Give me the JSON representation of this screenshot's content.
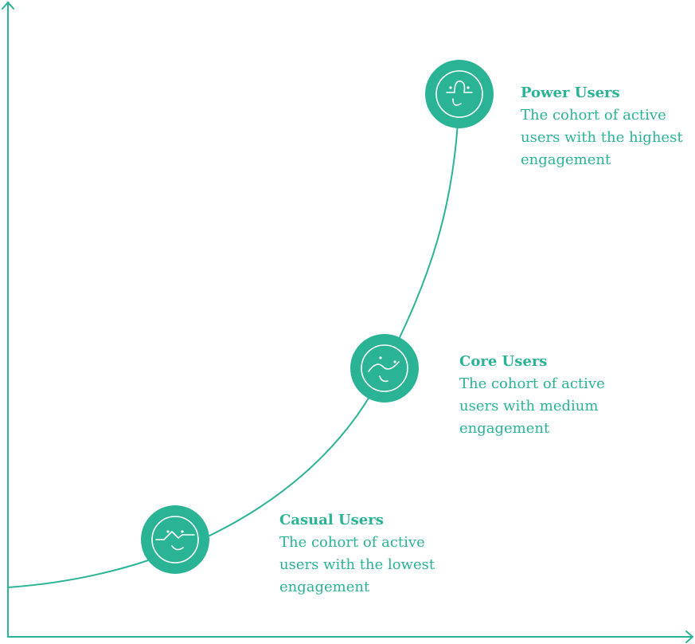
{
  "colors": {
    "accent": "#2bb396",
    "icon_stroke": "#ffffff"
  },
  "cohorts": [
    {
      "id": "casual",
      "icon": "face-icon",
      "title": "Casual Users",
      "description": "The cohort of active users with the lowest engagement"
    },
    {
      "id": "core",
      "icon": "face-icon",
      "title": "Core Users",
      "description": "The cohort of active users with medium engagement"
    },
    {
      "id": "power",
      "icon": "face-icon",
      "title": "Power Users",
      "description": "The cohort of active users with the highest engagement"
    }
  ]
}
